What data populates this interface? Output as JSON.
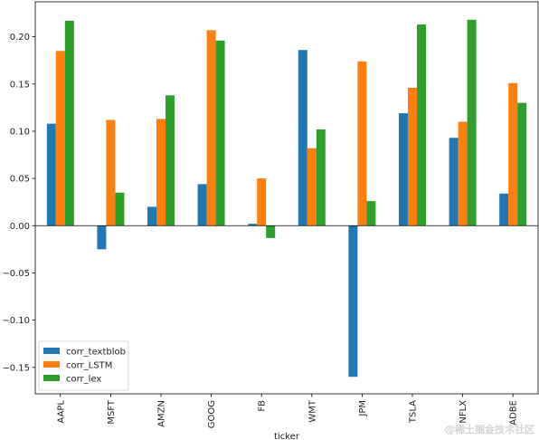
{
  "chart_data": {
    "type": "bar",
    "categories": [
      "AAPL",
      "MSFT",
      "AMZN",
      "GOOG",
      "FB",
      "WMT",
      "JPM",
      "TSLA",
      "NFLX",
      "ADBE"
    ],
    "series": [
      {
        "name": "corr_textblob",
        "color": "#1f77b4",
        "values": [
          0.108,
          -0.025,
          0.02,
          0.044,
          0.002,
          0.186,
          -0.16,
          0.119,
          0.093,
          0.034
        ]
      },
      {
        "name": "corr_LSTM",
        "color": "#ff7f0e",
        "values": [
          0.185,
          0.112,
          0.113,
          0.207,
          0.05,
          0.082,
          0.174,
          0.146,
          0.11,
          0.151
        ]
      },
      {
        "name": "corr_lex",
        "color": "#2ca02c",
        "values": [
          0.217,
          0.035,
          0.138,
          0.196,
          -0.013,
          0.102,
          0.026,
          0.213,
          0.218,
          0.13
        ]
      }
    ],
    "ylim": [
      -0.178,
      0.237
    ],
    "yticks": [
      -0.15,
      -0.1,
      -0.05,
      0.0,
      0.05,
      0.1,
      0.15,
      0.2
    ],
    "ytick_labels": [
      "−0.15",
      "−0.10",
      "−0.05",
      "0.00",
      "0.05",
      "0.10",
      "0.15",
      "0.20"
    ],
    "xlabel": "ticker",
    "ylabel": "",
    "legend_position": "lower-left",
    "grid": false
  },
  "watermark": "@稀土掘金技术社区"
}
